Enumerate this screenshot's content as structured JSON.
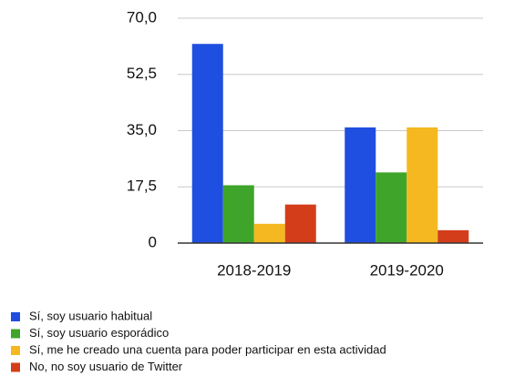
{
  "chart_data": {
    "type": "bar",
    "categories": [
      "2018-2019",
      "2019-2020"
    ],
    "series": [
      {
        "name": "Sí, soy usuario habitual",
        "color": "#1f4fe0",
        "values": [
          62,
          36
        ]
      },
      {
        "name": "Sí, soy usuario esporádico",
        "color": "#3fa52a",
        "values": [
          18,
          22
        ]
      },
      {
        "name": "Sí, me he creado una cuenta para poder participar en esta actividad",
        "color": "#f5b820",
        "values": [
          6,
          36
        ]
      },
      {
        "name": "No, no soy usuario de Twitter",
        "color": "#d43d1a",
        "values": [
          12,
          4
        ]
      }
    ],
    "ylim": [
      0,
      70
    ],
    "yticks": [
      0,
      {
        "value": 17.5,
        "label": "17,5"
      },
      {
        "value": 35,
        "label": "35,0"
      },
      {
        "value": 52.5,
        "label": "52,5"
      },
      {
        "value": 70,
        "label": "70,0"
      }
    ],
    "grid": true,
    "legend": "bottom"
  }
}
